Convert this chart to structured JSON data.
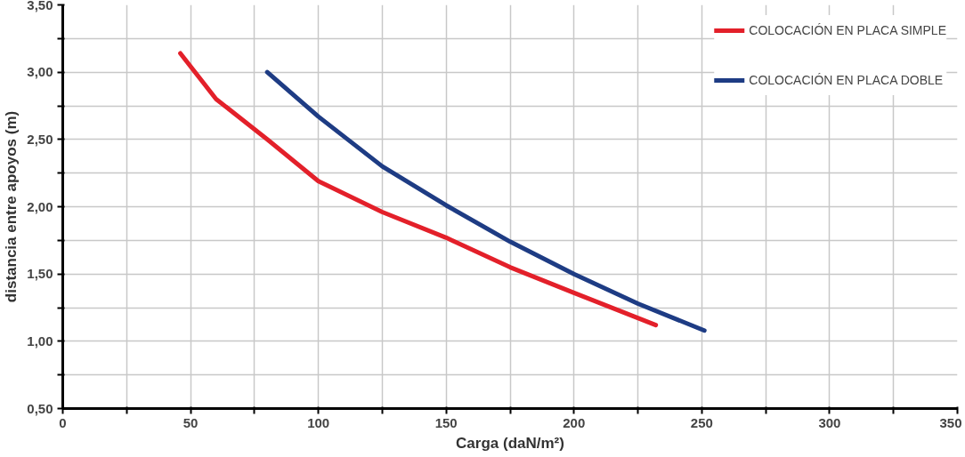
{
  "chart_data": {
    "type": "line",
    "xlabel": "Carga (daN/m²)",
    "ylabel": "distancia entre apoyos (m)",
    "xlim": [
      0,
      350
    ],
    "ylim": [
      0.5,
      3.5
    ],
    "xticks": [
      0,
      {
        "value": 25,
        "label": null
      },
      50,
      {
        "value": 75,
        "label": null
      },
      100,
      {
        "value": 125,
        "label": null
      },
      150,
      {
        "value": 175,
        "label": null
      },
      200,
      {
        "value": 225,
        "label": null
      },
      250,
      {
        "value": 275,
        "label": null
      },
      300,
      {
        "value": 325,
        "label": null
      },
      350
    ],
    "yticks": [
      {
        "value": 0.5,
        "label": "0,50"
      },
      {
        "value": 0.75,
        "label": null
      },
      {
        "value": 1.0,
        "label": "1,00"
      },
      {
        "value": 1.25,
        "label": null
      },
      {
        "value": 1.5,
        "label": "1,50"
      },
      {
        "value": 1.75,
        "label": null
      },
      {
        "value": 2.0,
        "label": "2,00"
      },
      {
        "value": 2.25,
        "label": null
      },
      {
        "value": 2.5,
        "label": "2,50"
      },
      {
        "value": 2.75,
        "label": null
      },
      {
        "value": 3.0,
        "label": "3,00"
      },
      {
        "value": 3.25,
        "label": null
      },
      {
        "value": 3.5,
        "label": "3,50"
      }
    ],
    "grid": true,
    "legend": "top right",
    "marker": "none",
    "line_style": "solid",
    "series": [
      {
        "name": "COLOCACIÓN EN PLACA SIMPLE",
        "color": "#e3202a",
        "x": [
          46,
          60,
          80,
          100,
          125,
          150,
          175,
          200,
          232
        ],
        "values": [
          3.14,
          2.8,
          2.5,
          2.19,
          1.96,
          1.77,
          1.55,
          1.36,
          1.12
        ]
      },
      {
        "name": "COLOCACIÓN EN PLACA DOBLE",
        "color": "#1e3c84",
        "x": [
          80,
          100,
          125,
          150,
          175,
          200,
          225,
          251
        ],
        "values": [
          3.0,
          2.67,
          2.3,
          2.01,
          1.74,
          1.5,
          1.28,
          1.08
        ]
      }
    ]
  }
}
